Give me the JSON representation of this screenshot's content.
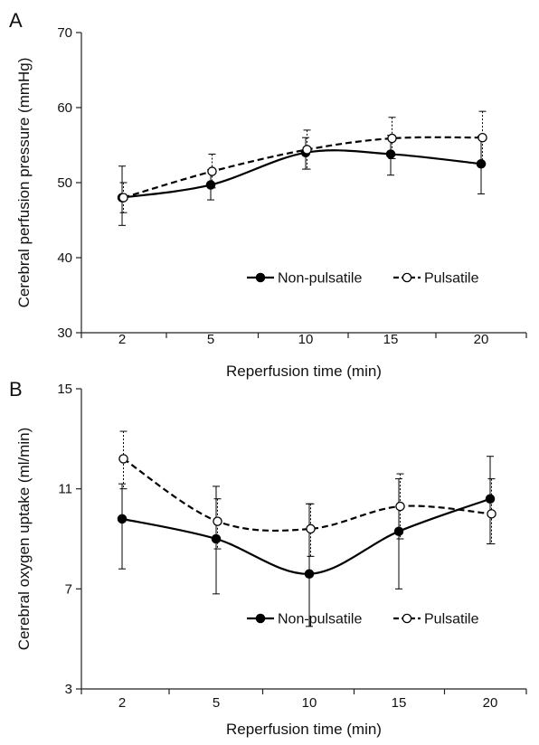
{
  "chart_data": [
    {
      "panel": "A",
      "type": "line",
      "categories": [
        "2",
        "5",
        "10",
        "15",
        "20"
      ],
      "xlabel": "Reperfusion time (min)",
      "ylabel": "Cerebral perfusion pressure (mmHg)",
      "ylim": [
        30,
        70
      ],
      "yticks": [
        "30",
        "40",
        "50",
        "60",
        "70"
      ],
      "grid": false,
      "legend_position": "lower-right",
      "series": [
        {
          "name": "Non-pulsatile",
          "style": "solid",
          "marker": "filled-circle",
          "values": [
            48.0,
            49.7,
            54.0,
            53.8,
            52.5
          ],
          "err_upper": [
            52.2,
            51.7,
            56.0,
            56.3,
            56.2
          ],
          "err_lower": [
            44.3,
            47.7,
            51.8,
            51.0,
            48.5
          ]
        },
        {
          "name": "Pulsatile",
          "style": "dashed",
          "marker": "open-circle",
          "values": [
            48.0,
            51.5,
            54.4,
            55.9,
            56.0
          ],
          "err_upper": [
            50.0,
            53.8,
            57.0,
            58.7,
            59.5
          ],
          "err_lower": [
            46.0,
            49.3,
            51.8,
            53.2,
            52.5
          ]
        }
      ]
    },
    {
      "panel": "B",
      "type": "line",
      "categories": [
        "2",
        "5",
        "10",
        "15",
        "20"
      ],
      "xlabel": "Reperfusion time (min)",
      "ylabel": "Cerebral oxygen uptake (ml/min)",
      "ylim": [
        3,
        15
      ],
      "yticks": [
        "3",
        "7",
        "11",
        "15"
      ],
      "grid": false,
      "legend_position": "lower-right",
      "series": [
        {
          "name": "Non-pulsatile",
          "style": "solid",
          "marker": "filled-circle",
          "values": [
            9.8,
            9.0,
            7.6,
            9.3,
            10.6
          ],
          "err_upper": [
            11.2,
            11.1,
            10.4,
            11.4,
            12.3
          ],
          "err_lower": [
            7.8,
            6.8,
            5.5,
            7.0,
            8.8
          ]
        },
        {
          "name": "Pulsatile",
          "style": "dashed",
          "marker": "open-circle",
          "values": [
            12.2,
            9.7,
            9.4,
            10.3,
            10.0
          ],
          "err_upper": [
            13.3,
            10.6,
            10.4,
            11.6,
            11.4
          ],
          "err_lower": [
            11.0,
            8.6,
            8.3,
            9.0,
            8.8
          ]
        }
      ]
    }
  ],
  "colors": {
    "line": "#000000",
    "axis": "#222222"
  },
  "icons": {
    "non_pulsatile_marker": "filled-circle-icon",
    "pulsatile_marker": "open-circle-icon"
  }
}
